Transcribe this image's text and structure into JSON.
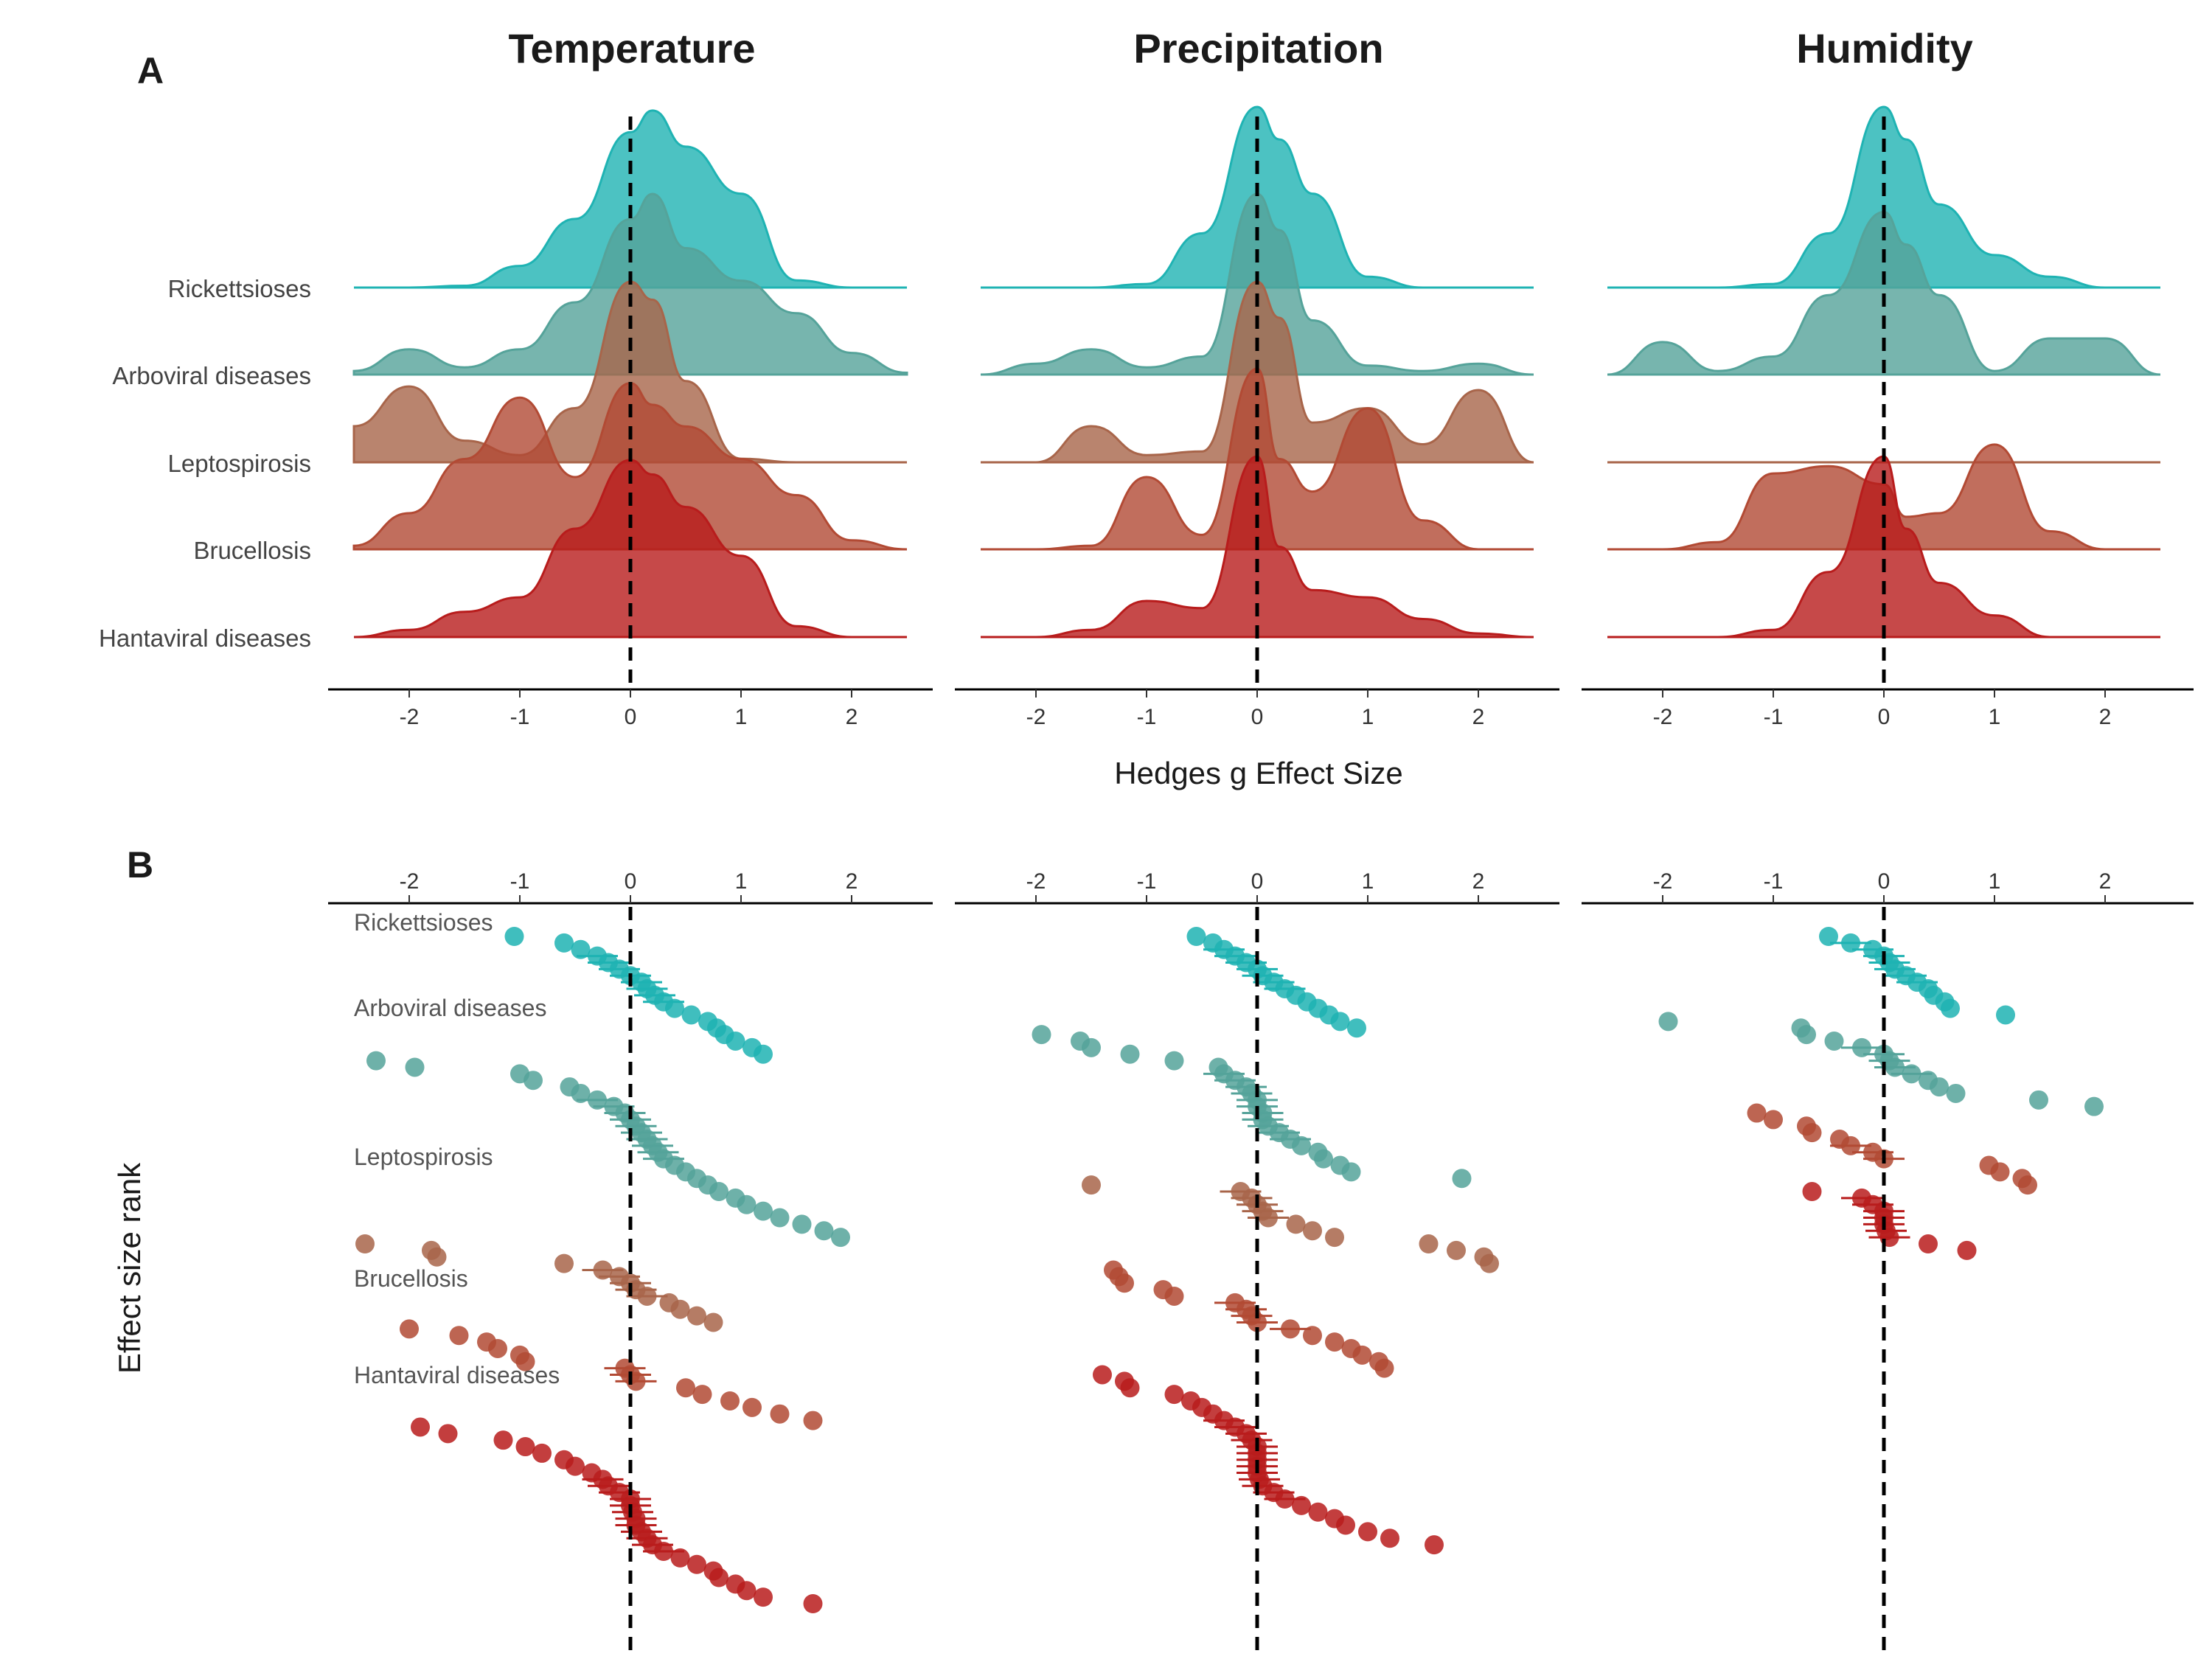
{
  "panel_letters": [
    "A",
    "B"
  ],
  "x_axis_title": "Hedges g Effect Size",
  "y_axis_title_b": "Effect size rank",
  "colors": {
    "Rickettsioses": "#1fb3b3",
    "Arboviral diseases": "#55a39a",
    "Leptospirosis": "#a8654a",
    "Brucellosis": "#b24a34",
    "Hantaviral diseases": "#b81c1c"
  },
  "chart_data": [
    {
      "type": "area",
      "subtype": "ridgeline-density",
      "panel": "A",
      "title": "Temperature",
      "xlabel": "Hedges g Effect Size",
      "xlim": [
        -2.5,
        2.5
      ],
      "x_ticks": [
        -2,
        -1,
        0,
        1,
        2
      ],
      "reference_line": 0,
      "categories": [
        "Rickettsioses",
        "Arboviral diseases",
        "Leptospirosis",
        "Brucellosis",
        "Hantaviral diseases"
      ],
      "x": [
        -2.5,
        -2.0,
        -1.5,
        -1.0,
        -0.5,
        0.0,
        0.2,
        0.5,
        1.0,
        1.5,
        2.0,
        2.5
      ],
      "series": [
        {
          "name": "Rickettsioses",
          "values": [
            0.0,
            0.0,
            0.01,
            0.12,
            0.38,
            0.86,
            0.98,
            0.78,
            0.52,
            0.04,
            0.0,
            0.0
          ]
        },
        {
          "name": "Arboviral diseases",
          "values": [
            0.02,
            0.14,
            0.04,
            0.14,
            0.4,
            0.86,
            1.0,
            0.7,
            0.52,
            0.34,
            0.12,
            0.01
          ]
        },
        {
          "name": "Leptospirosis",
          "values": [
            0.2,
            0.42,
            0.12,
            0.04,
            0.3,
            1.0,
            0.9,
            0.45,
            0.02,
            0.0,
            0.0,
            0.0
          ]
        },
        {
          "name": "Brucellosis",
          "values": [
            0.02,
            0.2,
            0.5,
            0.84,
            0.4,
            0.92,
            0.8,
            0.68,
            0.5,
            0.3,
            0.05,
            0.0
          ]
        },
        {
          "name": "Hantaviral diseases",
          "values": [
            0.0,
            0.04,
            0.14,
            0.22,
            0.6,
            0.98,
            0.9,
            0.72,
            0.45,
            0.06,
            0.0,
            0.0
          ]
        }
      ]
    },
    {
      "type": "area",
      "subtype": "ridgeline-density",
      "panel": "A",
      "title": "Precipitation",
      "xlabel": "Hedges g Effect Size",
      "xlim": [
        -2.5,
        2.5
      ],
      "x_ticks": [
        -2,
        -1,
        0,
        1,
        2
      ],
      "reference_line": 0,
      "categories": [
        "Rickettsioses",
        "Arboviral diseases",
        "Leptospirosis",
        "Brucellosis",
        "Hantaviral diseases"
      ],
      "x": [
        -2.5,
        -2.0,
        -1.5,
        -1.0,
        -0.5,
        0.0,
        0.2,
        0.5,
        1.0,
        1.5,
        2.0,
        2.5
      ],
      "series": [
        {
          "name": "Rickettsioses",
          "values": [
            0.0,
            0.0,
            0.0,
            0.02,
            0.3,
            1.0,
            0.82,
            0.52,
            0.06,
            0.0,
            0.0,
            0.0
          ]
        },
        {
          "name": "Arboviral diseases",
          "values": [
            0.0,
            0.06,
            0.14,
            0.04,
            0.1,
            1.0,
            0.8,
            0.3,
            0.05,
            0.02,
            0.06,
            0.0
          ]
        },
        {
          "name": "Leptospirosis",
          "values": [
            0.0,
            0.0,
            0.2,
            0.04,
            0.06,
            1.0,
            0.8,
            0.22,
            0.3,
            0.1,
            0.4,
            0.0
          ]
        },
        {
          "name": "Brucellosis",
          "values": [
            0.0,
            0.0,
            0.02,
            0.4,
            0.08,
            1.0,
            0.5,
            0.32,
            0.78,
            0.16,
            0.0,
            0.0
          ]
        },
        {
          "name": "Hantaviral diseases",
          "values": [
            0.0,
            0.0,
            0.04,
            0.2,
            0.16,
            1.0,
            0.5,
            0.26,
            0.22,
            0.1,
            0.02,
            0.0
          ]
        }
      ]
    },
    {
      "type": "area",
      "subtype": "ridgeline-density",
      "panel": "A",
      "title": "Humidity",
      "xlabel": "Hedges g Effect Size",
      "xlim": [
        -2.5,
        2.5
      ],
      "x_ticks": [
        -2,
        -1,
        0,
        1,
        2
      ],
      "reference_line": 0,
      "categories": [
        "Rickettsioses",
        "Arboviral diseases",
        "Leptospirosis",
        "Brucellosis",
        "Hantaviral diseases"
      ],
      "x": [
        -2.5,
        -2.0,
        -1.5,
        -1.0,
        -0.5,
        0.0,
        0.2,
        0.5,
        1.0,
        1.5,
        2.0,
        2.5
      ],
      "series": [
        {
          "name": "Rickettsioses",
          "values": [
            0.0,
            0.0,
            0.0,
            0.02,
            0.3,
            1.0,
            0.82,
            0.46,
            0.18,
            0.06,
            0.0,
            0.0
          ]
        },
        {
          "name": "Arboviral diseases",
          "values": [
            0.0,
            0.18,
            0.02,
            0.1,
            0.44,
            0.9,
            0.72,
            0.44,
            0.02,
            0.2,
            0.2,
            0.0
          ]
        },
        {
          "name": "Leptospirosis",
          "values": [
            0.0,
            0.0,
            0.0,
            0.0,
            0.0,
            0.0,
            0.0,
            0.0,
            0.0,
            0.0,
            0.0,
            0.0
          ]
        },
        {
          "name": "Brucellosis",
          "values": [
            0.0,
            0.0,
            0.04,
            0.42,
            0.46,
            0.36,
            0.18,
            0.2,
            0.58,
            0.1,
            0.0,
            0.0
          ]
        },
        {
          "name": "Hantaviral diseases",
          "values": [
            0.0,
            0.0,
            0.0,
            0.04,
            0.36,
            1.0,
            0.6,
            0.3,
            0.12,
            0.0,
            0.0,
            0.0
          ]
        }
      ]
    },
    {
      "type": "scatter",
      "subtype": "ranked-effect-sizes",
      "panel": "B",
      "title": "Temperature",
      "ylabel": "Effect size rank",
      "xlim": [
        -2.5,
        2.5
      ],
      "x_ticks": [
        -2,
        -1,
        0,
        1,
        2
      ],
      "reference_line": 0,
      "series": [
        {
          "name": "Rickettsioses",
          "values": [
            -1.05,
            -0.6,
            -0.45,
            -0.3,
            -0.2,
            -0.1,
            0.0,
            0.1,
            0.15,
            0.22,
            0.3,
            0.4,
            0.55,
            0.7,
            0.78,
            0.85,
            0.95,
            1.1,
            1.2
          ]
        },
        {
          "name": "Arboviral diseases",
          "values": [
            -2.3,
            -1.95,
            -1.0,
            -0.88,
            -0.55,
            -0.45,
            -0.3,
            -0.15,
            -0.05,
            0.0,
            0.05,
            0.1,
            0.15,
            0.2,
            0.25,
            0.3,
            0.4,
            0.5,
            0.6,
            0.7,
            0.8,
            0.95,
            1.05,
            1.2,
            1.35,
            1.55,
            1.75,
            1.9
          ]
        },
        {
          "name": "Leptospirosis",
          "values": [
            -2.4,
            -1.8,
            -1.75,
            -0.6,
            -0.25,
            -0.1,
            0.0,
            0.05,
            0.15,
            0.35,
            0.45,
            0.6,
            0.75
          ]
        },
        {
          "name": "Brucellosis",
          "values": [
            -2.0,
            -1.55,
            -1.3,
            -1.2,
            -1.0,
            -0.95,
            -0.05,
            0.0,
            0.05,
            0.5,
            0.65,
            0.9,
            1.1,
            1.35,
            1.65
          ]
        },
        {
          "name": "Hantaviral diseases",
          "values": [
            -1.9,
            -1.65,
            -1.15,
            -0.95,
            -0.8,
            -0.6,
            -0.5,
            -0.35,
            -0.25,
            -0.2,
            -0.1,
            0.0,
            0.0,
            0.02,
            0.05,
            0.05,
            0.1,
            0.15,
            0.2,
            0.3,
            0.45,
            0.6,
            0.75,
            0.8,
            0.95,
            1.05,
            1.2,
            1.65
          ]
        }
      ]
    },
    {
      "type": "scatter",
      "subtype": "ranked-effect-sizes",
      "panel": "B",
      "title": "Precipitation",
      "ylabel": "Effect size rank",
      "xlim": [
        -2.5,
        2.5
      ],
      "x_ticks": [
        -2,
        -1,
        0,
        1,
        2
      ],
      "reference_line": 0,
      "series": [
        {
          "name": "Rickettsioses",
          "values": [
            -0.55,
            -0.4,
            -0.3,
            -0.2,
            -0.1,
            0.0,
            0.05,
            0.15,
            0.25,
            0.35,
            0.45,
            0.55,
            0.65,
            0.75,
            0.9
          ]
        },
        {
          "name": "Arboviral diseases",
          "values": [
            -1.95,
            -1.6,
            -1.5,
            -1.15,
            -0.75,
            -0.35,
            -0.3,
            -0.2,
            -0.1,
            -0.05,
            0.0,
            0.0,
            0.05,
            0.05,
            0.1,
            0.2,
            0.3,
            0.4,
            0.55,
            0.6,
            0.75,
            0.85,
            1.85
          ]
        },
        {
          "name": "Leptospirosis",
          "values": [
            -1.5,
            -0.15,
            -0.05,
            0.0,
            0.05,
            0.1,
            0.35,
            0.5,
            0.7,
            1.55,
            1.8,
            2.05,
            2.1
          ]
        },
        {
          "name": "Brucellosis",
          "values": [
            -1.3,
            -1.25,
            -1.2,
            -0.85,
            -0.75,
            -0.2,
            -0.1,
            -0.05,
            0.0,
            0.3,
            0.5,
            0.7,
            0.85,
            0.95,
            1.1,
            1.15
          ]
        },
        {
          "name": "Hantaviral diseases",
          "values": [
            -1.4,
            -1.2,
            -1.15,
            -0.75,
            -0.6,
            -0.5,
            -0.4,
            -0.3,
            -0.2,
            -0.1,
            -0.05,
            0.0,
            0.0,
            0.0,
            0.0,
            0.0,
            0.02,
            0.05,
            0.15,
            0.25,
            0.4,
            0.55,
            0.7,
            0.8,
            1.0,
            1.2,
            1.6
          ]
        }
      ]
    },
    {
      "type": "scatter",
      "subtype": "ranked-effect-sizes",
      "panel": "B",
      "title": "Humidity",
      "ylabel": "Effect size rank",
      "xlim": [
        -2.5,
        2.5
      ],
      "x_ticks": [
        -2,
        -1,
        0,
        1,
        2
      ],
      "reference_line": 0,
      "series": [
        {
          "name": "Rickettsioses",
          "values": [
            -0.5,
            -0.3,
            -0.1,
            0.0,
            0.05,
            0.1,
            0.2,
            0.3,
            0.4,
            0.45,
            0.55,
            0.6,
            1.1
          ]
        },
        {
          "name": "Arboviral diseases",
          "values": [
            -1.95,
            -0.75,
            -0.7,
            -0.45,
            -0.2,
            0.0,
            0.05,
            0.1,
            0.25,
            0.4,
            0.5,
            0.65,
            1.4,
            1.9
          ]
        },
        {
          "name": "Leptospirosis",
          "values": []
        },
        {
          "name": "Brucellosis",
          "values": [
            -1.15,
            -1.0,
            -0.7,
            -0.65,
            -0.4,
            -0.3,
            -0.1,
            0.0,
            0.95,
            1.05,
            1.25,
            1.3
          ]
        },
        {
          "name": "Hantaviral diseases",
          "values": [
            -0.65,
            -0.2,
            -0.1,
            0.0,
            0.0,
            0.0,
            0.02,
            0.05,
            0.4,
            0.75
          ]
        }
      ]
    }
  ]
}
